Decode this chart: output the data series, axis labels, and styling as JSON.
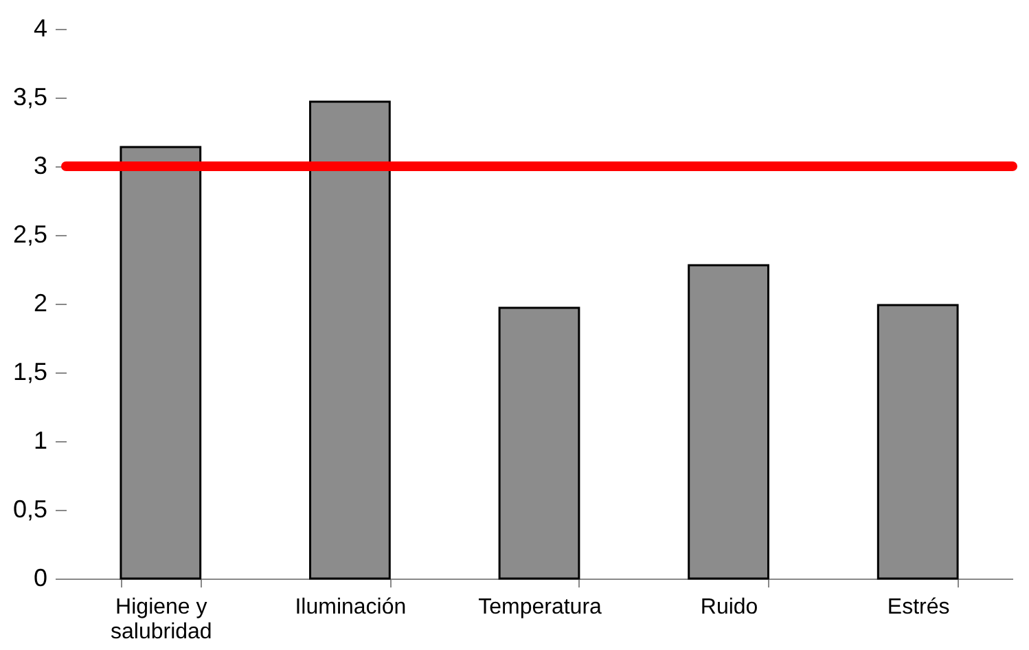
{
  "chart_data": {
    "type": "bar",
    "categories": [
      "Higiene y salubridad",
      "Iluminación",
      "Temperatura",
      "Ruido",
      "Estrés"
    ],
    "values": [
      3.14,
      3.47,
      1.97,
      2.28,
      1.99
    ],
    "color": "#8c8c8c",
    "ylim": [
      0,
      4
    ],
    "yticks": [
      0,
      {
        "value": 0.5,
        "label": "0,5"
      },
      1,
      {
        "value": 1.5,
        "label": "1,5"
      },
      2,
      {
        "value": 2.5,
        "label": "2,5"
      },
      3,
      {
        "value": 3.5,
        "label": "3,5"
      },
      4
    ],
    "ref_lines": [
      {
        "axis": "y",
        "value": 3,
        "color": "#ff0000"
      }
    ],
    "grid": false
  }
}
